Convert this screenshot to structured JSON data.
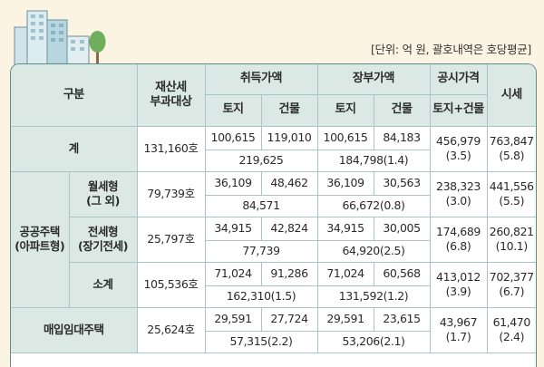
{
  "unit_note": "[단위: 억 원, 괄호내역은 호당평균]",
  "header": {
    "category": "구분",
    "tax_target": "재산세\n부과대상",
    "acquisition": "취득가액",
    "book": "장부가액",
    "official": "공시가격",
    "official_sub": "토지+건물",
    "market": "시세",
    "land": "토지",
    "building": "건물"
  },
  "rows": {
    "total": {
      "label": "계",
      "tax": "131,160호",
      "acq_land": "100,615",
      "acq_bldg": "119,010",
      "acq_sum": "219,625",
      "book_land": "100,615",
      "book_bldg": "84,183",
      "book_sum": "184,798(1.4)",
      "official": "456,979\n(3.5)",
      "market": "763,847\n(5.8)"
    },
    "public_group": "공공주택\n(아파트형)",
    "monthly": {
      "label": "월세형\n(그 외)",
      "tax": "79,739호",
      "acq_land": "36,109",
      "acq_bldg": "48,462",
      "acq_sum": "84,571",
      "book_land": "36,109",
      "book_bldg": "30,563",
      "book_sum": "66,672(0.8)",
      "official": "238,323\n(3.0)",
      "market": "441,556\n(5.5)"
    },
    "jeonse": {
      "label": "전세형\n(장기전세)",
      "tax": "25,797호",
      "acq_land": "34,915",
      "acq_bldg": "42,824",
      "acq_sum": "77,739",
      "book_land": "34,915",
      "book_bldg": "30,005",
      "book_sum": "64,920(2.5)",
      "official": "174,689\n(6.8)",
      "market": "260,821\n(10.1)"
    },
    "subtotal": {
      "label": "소계",
      "tax": "105,536호",
      "acq_land": "71,024",
      "acq_bldg": "91,286",
      "acq_sum": "162,310(1.5)",
      "book_land": "71,024",
      "book_bldg": "60,568",
      "book_sum": "131,592(1.2)",
      "official": "413,012\n(3.9)",
      "market": "702,377\n(6.7)"
    },
    "purchase": {
      "label": "매입임대주택",
      "tax": "25,624호",
      "acq_land": "29,591",
      "acq_bldg": "27,724",
      "acq_sum": "57,315(2.2)",
      "book_land": "29,591",
      "book_bldg": "23,615",
      "book_sum": "53,206(2.1)",
      "official": "43,967\n(1.7)",
      "market": "61,470\n(2.4)"
    }
  },
  "colors": {
    "header_bg": "#dbe8e3",
    "border": "#5c8c8c",
    "background": "#fbf4e2"
  }
}
